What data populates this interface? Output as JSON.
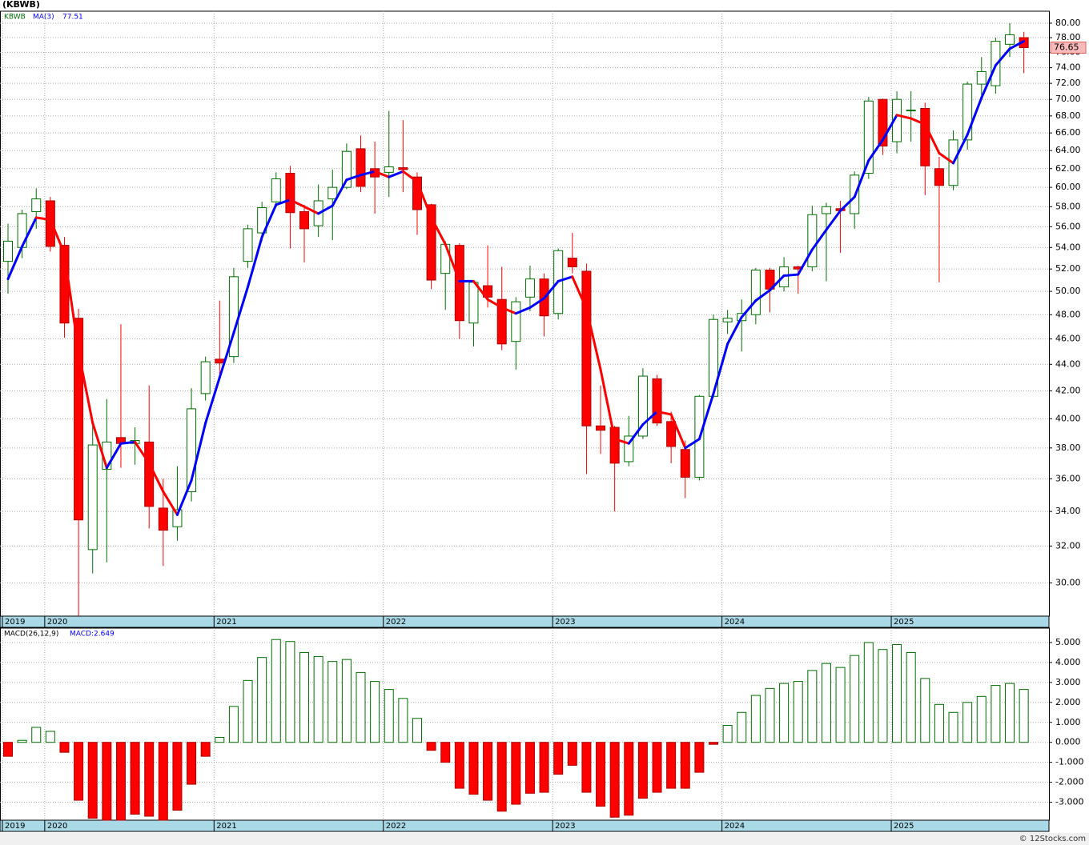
{
  "title": "(KBWB)",
  "footer": "© 12Stocks.com",
  "chart_data": [
    {
      "type": "candlestick",
      "symbol": "KBWB",
      "log_scale": true,
      "grid": true,
      "up_color": "#007000",
      "down_color": "#ff0000",
      "categories": [
        "2019",
        null,
        null,
        "2020",
        null,
        null,
        null,
        null,
        null,
        null,
        null,
        null,
        null,
        null,
        null,
        "2021",
        null,
        null,
        null,
        null,
        null,
        null,
        null,
        null,
        null,
        null,
        null,
        "2022",
        null,
        null,
        null,
        null,
        null,
        null,
        null,
        null,
        null,
        null,
        null,
        "2023",
        null,
        null,
        null,
        null,
        null,
        null,
        null,
        null,
        null,
        null,
        null,
        "2024",
        null,
        null,
        null,
        null,
        null,
        null,
        null,
        null,
        null,
        null,
        null,
        "2025",
        null,
        null,
        null,
        null,
        null,
        null,
        null,
        null,
        null
      ],
      "open": [
        52.7,
        54,
        57.5,
        58.6,
        54.2,
        47.7,
        31.8,
        36.6,
        38.7,
        38.3,
        38.4,
        34.2,
        33.1,
        35.2,
        41.8,
        44.4,
        44.6,
        52.7,
        55.4,
        58.5,
        61.5,
        57.5,
        56.1,
        58.8,
        60,
        64.2,
        62,
        61.6,
        62.1,
        61.1,
        58.2,
        51.6,
        54.2,
        47.3,
        50.5,
        49.3,
        45.8,
        49.5,
        51.1,
        48.1,
        53,
        51.8,
        39.5,
        39.4,
        37.1,
        38.8,
        42.9,
        39.8,
        37.9,
        36.1,
        41.6,
        47.4,
        47.5,
        48,
        51.9,
        50.4,
        52.2,
        52.2,
        57.3,
        57.8,
        57.3,
        61.5,
        70,
        65,
        68.6,
        68.9,
        62,
        60.2,
        65.2,
        71.9,
        71.7,
        77.1,
        78
      ],
      "high": [
        56.3,
        57.7,
        59.9,
        59,
        55,
        48.5,
        40,
        41.4,
        47.2,
        39.4,
        42.4,
        36,
        36.8,
        42.2,
        44.6,
        49.2,
        52.1,
        56.2,
        58.5,
        61.6,
        62.3,
        58.2,
        60.3,
        61.9,
        64.8,
        65.7,
        65,
        68.6,
        67.5,
        61.6,
        58.3,
        54.6,
        54.4,
        51,
        54.2,
        52.2,
        49.5,
        52.3,
        51.6,
        53.9,
        55.4,
        52.5,
        42.4,
        39.5,
        40.2,
        43.7,
        43.2,
        40.5,
        38.5,
        41.7,
        48,
        48.4,
        49.3,
        52.1,
        52.1,
        53.1,
        52.3,
        58.1,
        58.4,
        58.6,
        61.7,
        70.3,
        70.1,
        71,
        71,
        69.6,
        63.3,
        66.3,
        72.2,
        75.4,
        78,
        80,
        78.8
      ],
      "low": [
        49.8,
        53,
        55.8,
        53.6,
        46.1,
        28.3,
        30.5,
        31.1,
        36.7,
        36.9,
        33,
        30.9,
        32.3,
        34.6,
        41.3,
        43.2,
        44.1,
        52.1,
        54.6,
        58,
        53.9,
        52.6,
        55,
        54.7,
        59.8,
        59.5,
        57.3,
        59,
        59.5,
        55.2,
        50.2,
        48.4,
        46,
        45.4,
        48.6,
        45.1,
        43.6,
        48.3,
        46.2,
        47.6,
        51.6,
        36.3,
        37.6,
        34,
        36.8,
        38.6,
        39.5,
        37,
        34.8,
        35.9,
        41.5,
        46.4,
        45,
        47.2,
        48.2,
        50,
        49.8,
        51.8,
        50.9,
        53.5,
        55.8,
        60.9,
        63.5,
        63.7,
        65,
        59.2,
        50.8,
        59.7,
        64.1,
        70.5,
        70.7,
        75.4,
        73.3
      ],
      "close": [
        54.6,
        57.3,
        58.8,
        54.1,
        47.3,
        33.5,
        38.2,
        38.4,
        38.3,
        38.5,
        34.3,
        32.9,
        34.1,
        40.7,
        44.2,
        44.1,
        51.3,
        55.8,
        57.9,
        60.9,
        57.4,
        55.8,
        58.6,
        60,
        63.9,
        60.1,
        61.1,
        62.2,
        61.9,
        57.7,
        51,
        54.3,
        47.5,
        50.8,
        49.5,
        45.6,
        49.1,
        51.1,
        47.9,
        53.7,
        52.2,
        39.5,
        39.2,
        37,
        38.8,
        43.1,
        39.7,
        38.1,
        36.1,
        41.6,
        47.6,
        47.7,
        48.1,
        51.9,
        50.2,
        52.2,
        52,
        57.2,
        58,
        57.6,
        61.3,
        69.8,
        64.5,
        70,
        68.7,
        62.3,
        60.2,
        65.2,
        71.9,
        73.5,
        77.5,
        78.4,
        76.65
      ],
      "ma": {
        "name": "MA(3)",
        "color": "#0000ff",
        "down_color": "#ff0000",
        "values": [
          51.1,
          54.1,
          56.9,
          56.7,
          53.4,
          45.0,
          39.7,
          36.7,
          38.3,
          38.4,
          37.0,
          35.2,
          33.8,
          35.9,
          39.7,
          43.0,
          46.5,
          50.4,
          55.0,
          58.2,
          58.7,
          58.0,
          57.3,
          58.1,
          60.8,
          61.3,
          61.7,
          61.1,
          61.7,
          60.6,
          56.9,
          54.3,
          50.9,
          50.9,
          49.3,
          48.6,
          48.1,
          48.6,
          49.4,
          50.9,
          51.3,
          48.5,
          43.6,
          38.6,
          38.3,
          39.6,
          40.5,
          40.3,
          38.0,
          38.6,
          41.8,
          45.6,
          47.8,
          49.2,
          50.1,
          51.4,
          51.5,
          53.8,
          55.7,
          57.6,
          59.0,
          62.9,
          65.2,
          68.1,
          67.7,
          67.0,
          63.7,
          62.6,
          65.8,
          70.2,
          74.3,
          76.5,
          77.51
        ]
      },
      "ylim": [
        28.3,
        81.7
      ],
      "yticks": [
        {
          "value": 30,
          "label": "30.00"
        },
        {
          "value": 32,
          "label": "32.00"
        },
        {
          "value": 34,
          "label": "34.00"
        },
        {
          "value": 36,
          "label": "36.00"
        },
        {
          "value": 38,
          "label": "38.00"
        },
        {
          "value": 40,
          "label": "40.00"
        },
        {
          "value": 42,
          "label": "42.00"
        },
        {
          "value": 44,
          "label": "44.00"
        },
        {
          "value": 46,
          "label": "46.00"
        },
        {
          "value": 48,
          "label": "48.00"
        },
        {
          "value": 50,
          "label": "50.00"
        },
        {
          "value": 52,
          "label": "52.00"
        },
        {
          "value": 54,
          "label": "54.00"
        },
        {
          "value": 56,
          "label": "56.00"
        },
        {
          "value": 58,
          "label": "58.00"
        },
        {
          "value": 60,
          "label": "60.00"
        },
        {
          "value": 62,
          "label": "62.00"
        },
        {
          "value": 64,
          "label": "64.00"
        },
        {
          "value": 66,
          "label": "66.00"
        },
        {
          "value": 68,
          "label": "68.00"
        },
        {
          "value": 70,
          "label": "70.00"
        },
        {
          "value": 72,
          "label": "72.00"
        },
        {
          "value": 74,
          "label": "74.00"
        },
        {
          "value": 76,
          "label": "76.00"
        },
        {
          "value": 78,
          "label": "78.00"
        },
        {
          "value": 80,
          "label": "80.00"
        }
      ]
    },
    {
      "type": "macd",
      "name": "MACD(26,12,9)",
      "last_label": "MACD:2.649",
      "grid": true,
      "up_color": "#007000",
      "down_color": "#ff0000",
      "categories": [
        "2019",
        null,
        null,
        "2020",
        null,
        null,
        null,
        null,
        null,
        null,
        null,
        null,
        null,
        null,
        null,
        "2021",
        null,
        null,
        null,
        null,
        null,
        null,
        null,
        null,
        null,
        null,
        null,
        "2022",
        null,
        null,
        null,
        null,
        null,
        null,
        null,
        null,
        null,
        null,
        null,
        "2023",
        null,
        null,
        null,
        null,
        null,
        null,
        null,
        null,
        null,
        null,
        null,
        "2024",
        null,
        null,
        null,
        null,
        null,
        null,
        null,
        null,
        null,
        null,
        null,
        "2025",
        null,
        null,
        null,
        null,
        null,
        null,
        null,
        null,
        null
      ],
      "values": [
        -0.7,
        0.1,
        0.75,
        0.55,
        -0.5,
        -2.9,
        -3.8,
        -3.9,
        -3.9,
        -3.6,
        -3.7,
        -3.9,
        -3.4,
        -2.1,
        -0.7,
        0.25,
        1.8,
        3.1,
        4.25,
        5.15,
        5.05,
        4.5,
        4.3,
        4.05,
        4.15,
        3.5,
        3.05,
        2.65,
        2.2,
        1.2,
        -0.4,
        -1.0,
        -2.3,
        -2.6,
        -2.9,
        -3.45,
        -3.1,
        -2.55,
        -2.5,
        -1.6,
        -1.15,
        -2.5,
        -3.2,
        -3.75,
        -3.65,
        -2.8,
        -2.5,
        -2.3,
        -2.3,
        -1.5,
        -0.1,
        0.85,
        1.5,
        2.35,
        2.7,
        2.95,
        3.05,
        3.6,
        3.95,
        3.75,
        4.35,
        5.0,
        4.65,
        4.9,
        4.5,
        3.2,
        1.9,
        1.5,
        2.0,
        2.3,
        2.85,
        2.95,
        2.649
      ],
      "ylim": [
        -3.9,
        5.72
      ],
      "yticks": [
        {
          "value": -3,
          "label": "-3.000"
        },
        {
          "value": -2,
          "label": "-2.000"
        },
        {
          "value": -1,
          "label": "-1.000"
        },
        {
          "value": 0,
          "label": "0.000"
        },
        {
          "value": 1,
          "label": "1.000"
        },
        {
          "value": 2,
          "label": "2.000"
        },
        {
          "value": 3,
          "label": "3.000"
        },
        {
          "value": 4,
          "label": "4.000"
        },
        {
          "value": 5,
          "label": "5.000"
        }
      ]
    }
  ]
}
